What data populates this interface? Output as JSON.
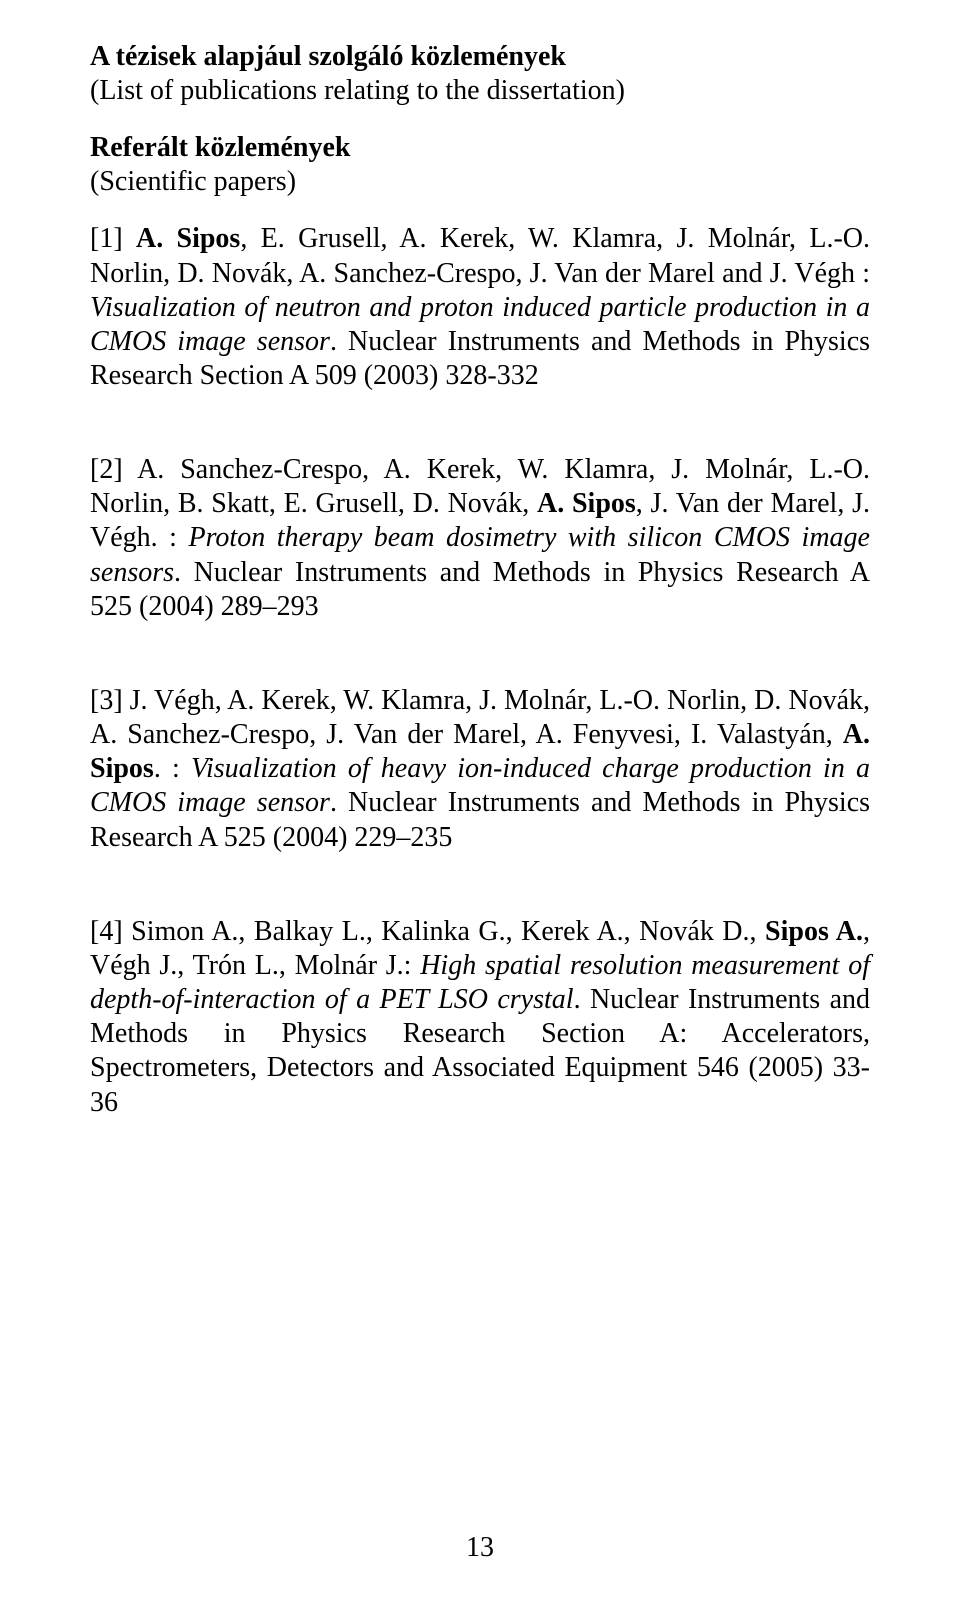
{
  "title_hu": "A tézisek alapjául szolgáló közlemények",
  "title_en": "(List of publications relating to the dissertation)",
  "section_hu": "Referált közlemények",
  "section_en": "(Scientific papers)",
  "refs": [
    {
      "num": "[1] ",
      "authors_pre": "",
      "author_bold": "A. Sipos",
      "authors_post": ", E. Grusell, A. Kerek, W. Klamra, J. Molnár, L.-O. Norlin, D. Novák, A. Sanchez-Crespo, J. Van der Marel and J. Végh : ",
      "title": "Visualization of neutron and proton induced particle production in a CMOS image sensor",
      "rest": ". Nuclear Instruments and Methods in Physics Research Section A 509 (2003) 328-332"
    },
    {
      "num": "[2] ",
      "authors_pre": "A. Sanchez-Crespo, A. Kerek, W. Klamra, J. Molnár, L.-O. Norlin, B. Skatt, E. Grusell, D. Novák, ",
      "author_bold": "A. Sipos",
      "authors_post": ", J. Van der Marel, J. Végh. : ",
      "title": "Proton therapy beam dosimetry with silicon CMOS image sensors",
      "rest": ". Nuclear Instruments and Methods in Physics Research A 525 (2004) 289–293"
    },
    {
      "num": "[3] ",
      "authors_pre": "J. Végh, A. Kerek, W. Klamra, J. Molnár, L.-O. Norlin, D. Novák, A. Sanchez-Crespo, J. Van der Marel, A. Fenyvesi, I. Valastyán, ",
      "author_bold": "A. Sipos",
      "authors_post": ". : ",
      "title": "Visualization of heavy ion-induced charge production in a CMOS image sensor",
      "rest": ". Nuclear Instruments and Methods in Physics Research A 525 (2004) 229–235"
    },
    {
      "num": "[4] ",
      "authors_pre": "Simon A., Balkay L., Kalinka G., Kerek A., Novák D., ",
      "author_bold": "Sipos A.",
      "authors_post": ", Végh J., Trón L., Molnár J.: ",
      "title": "High spatial resolution measurement of depth-of-interaction of a PET LSO crystal",
      "rest": ". Nuclear Instruments and Methods in Physics Research Section A: Accelerators, Spectrometers, Detectors and Associated Equipment 546 (2005) 33-36"
    }
  ],
  "page_number": "13"
}
